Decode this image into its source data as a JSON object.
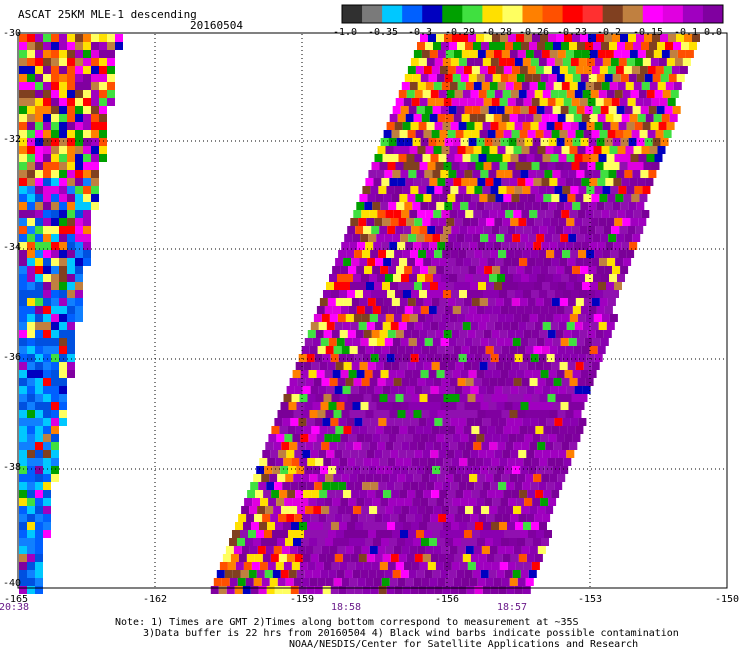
{
  "header": {
    "title": "ASCAT 25KM MLE-1 descending",
    "date": "20160504"
  },
  "colorbar": {
    "labels": [
      "-1.0",
      "-0.35",
      "-0.3",
      "-0.29",
      "-0.28",
      "-0.26",
      "-0.23",
      "-0.2",
      "-0.15",
      "-0.1",
      "0.0"
    ],
    "colors": [
      "#303030",
      "#7a7a7a",
      "#00c8ff",
      "#0060ff",
      "#0000c0",
      "#00a000",
      "#40e040",
      "#ffe000",
      "#ffff60",
      "#ff8000",
      "#ff5000",
      "#ff0000",
      "#ff3030",
      "#804020",
      "#c08040",
      "#ff00ff",
      "#e000e0",
      "#a000c0",
      "#8000a0"
    ]
  },
  "axes": {
    "lon_labels": [
      "-165",
      "-162",
      "-159",
      "-156",
      "-153",
      "-150"
    ],
    "lat_labels": [
      "-30",
      "-32",
      "-34",
      "-36",
      "-38",
      "-40"
    ]
  },
  "times": [
    {
      "text": "20:38",
      "lon": -165
    },
    {
      "text": "18:58",
      "lon": -159
    },
    {
      "text": "18:57",
      "lon": -157
    }
  ],
  "notes": {
    "line1": "Note: 1) Times are GMT 2)Times along bottom correspond to measurement at ~35S",
    "line2": "3)Data buffer is 22 hrs from 20160504 4) Black wind barbs indicate possible contamination",
    "line3": "NOAA/NESDIS/Center for Satellite Applications and Research"
  }
}
